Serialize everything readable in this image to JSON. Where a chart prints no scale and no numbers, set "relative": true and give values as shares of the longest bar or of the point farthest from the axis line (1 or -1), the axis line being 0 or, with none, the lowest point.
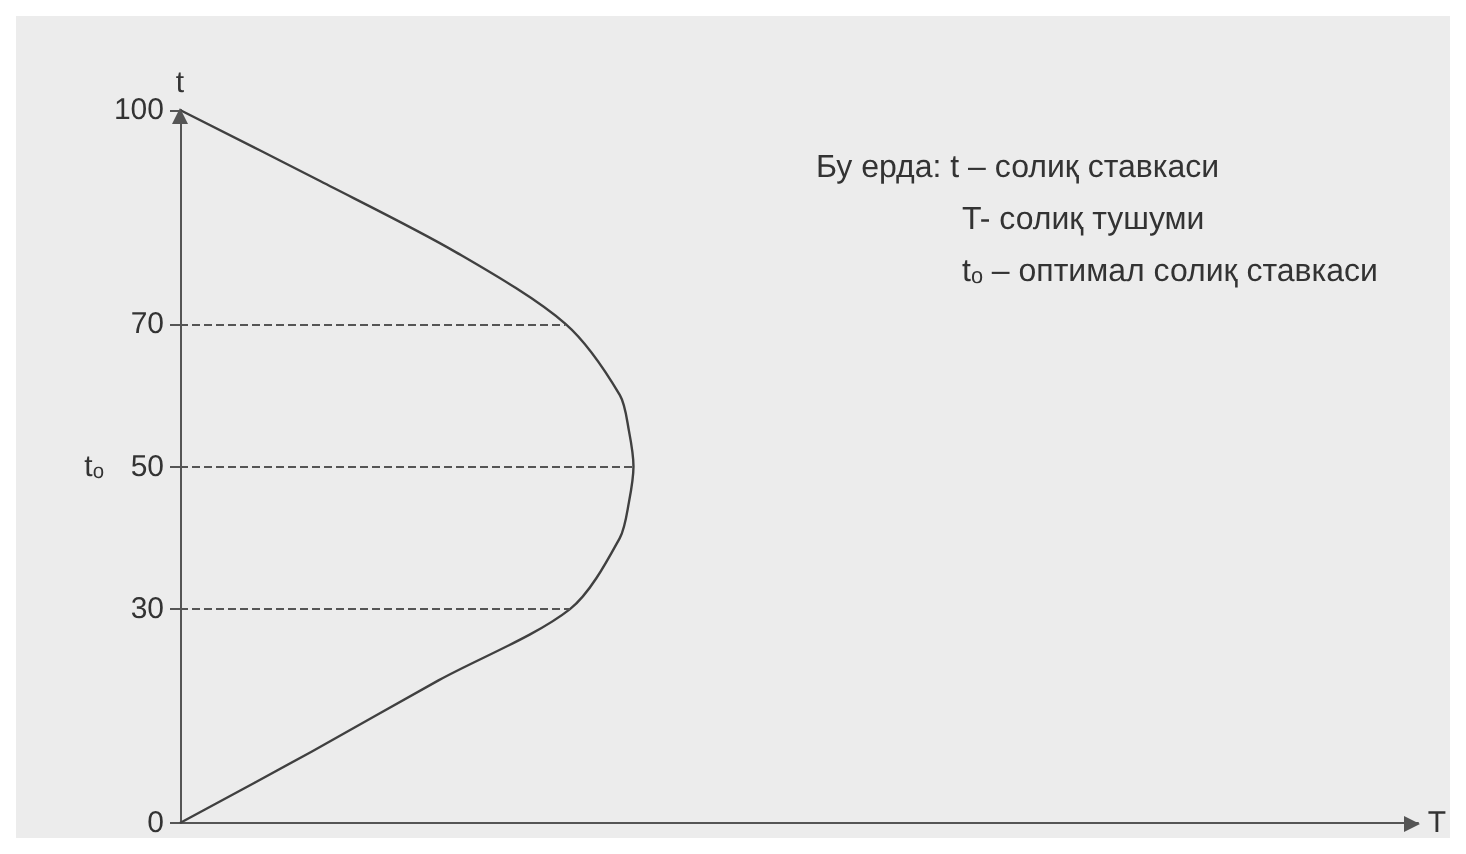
{
  "chart_data": {
    "type": "line",
    "orientation": "horizontal",
    "relative": true,
    "x": [
      0,
      10,
      20,
      30,
      40,
      45,
      50,
      55,
      60,
      70,
      80,
      90,
      100
    ],
    "values": [
      0,
      0.29,
      0.57,
      0.86,
      0.97,
      0.99,
      1,
      0.99,
      0.97,
      0.85,
      0.61,
      0.31,
      0
    ],
    "color": "#404040",
    "marker": "none",
    "line_style": "solid",
    "grid": false,
    "ylim": [
      0,
      100
    ],
    "yticks": [
      0,
      30,
      50,
      70,
      100
    ],
    "ylabel": "t",
    "ref_lines": [
      {
        "axis": "y",
        "value": 70,
        "line_style": "dashed"
      },
      {
        "axis": "y",
        "value": 50,
        "label": "tₒ",
        "line_style": "dashed"
      },
      {
        "axis": "y",
        "value": 30,
        "line_style": "dashed"
      }
    ],
    "annotations": [
      "T",
      "Бу ерда: t – солиқ ставкаси",
      "T- солиқ тушуми",
      "tₒ – оптимал солиқ ставкаси"
    ]
  }
}
